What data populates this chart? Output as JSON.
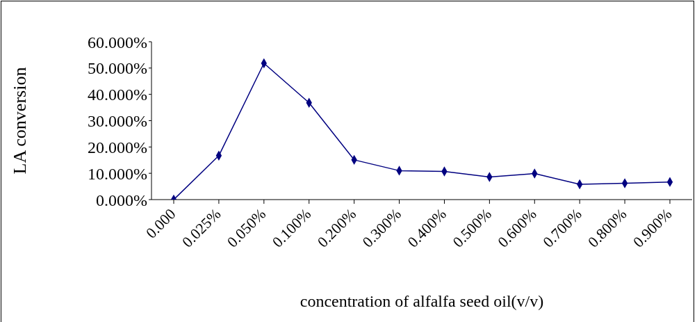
{
  "chart_data": {
    "type": "line",
    "xlabel": "concentration of alfalfa seed oil(v/v)",
    "ylabel": "LA conversion",
    "categories": [
      "0.000",
      "0.025%",
      "0.050%",
      "0.100%",
      "0.200%",
      "0.300%",
      "0.400%",
      "0.500%",
      "0.600%",
      "0.700%",
      "0.800%",
      "0.900%"
    ],
    "series": [
      {
        "color": "#000080",
        "values": [
          0,
          16.7,
          51.8,
          36.8,
          15.1,
          11.0,
          10.7,
          8.6,
          9.9,
          5.8,
          6.2,
          6.7
        ]
      }
    ],
    "ylim": [
      0,
      60
    ],
    "yticks": [
      {
        "value": 0,
        "label": "0.000%"
      },
      {
        "value": 10,
        "label": "10.000%"
      },
      {
        "value": 20,
        "label": "20.000%"
      },
      {
        "value": 30,
        "label": "30.000%"
      },
      {
        "value": 40,
        "label": "40.000%"
      },
      {
        "value": 50,
        "label": "50.000%"
      },
      {
        "value": 60,
        "label": "60.000%"
      }
    ],
    "marker": "diamond",
    "grid": false,
    "legend": false
  }
}
